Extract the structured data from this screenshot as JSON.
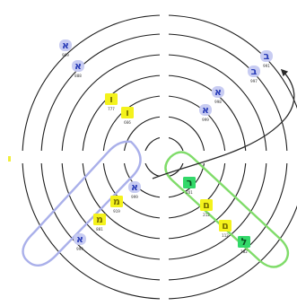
{
  "colors": {
    "ring": "#1e1e1e",
    "blue_tile": "#c8ccf2",
    "blue_letter": "#2b3eb8",
    "yellow_tile": "#f4f21c",
    "yellow_letter": "#7a7100",
    "green_tile": "#33d86a",
    "green_letter": "#0b4f22",
    "blue_band": "#aab0ea",
    "green_band": "#80dc6a",
    "path": "#2a2a2a",
    "marker": "#f1ee3a"
  },
  "nodes": [
    {
      "letter": "א",
      "number": "999",
      "color": "blue"
    },
    {
      "letter": "א",
      "number": "888",
      "color": "blue"
    },
    {
      "letter": "ו",
      "number": "777",
      "color": "yellow"
    },
    {
      "letter": "ו",
      "number": "666",
      "color": "yellow"
    },
    {
      "letter": "ב",
      "number": "991",
      "color": "blue"
    },
    {
      "letter": "ב",
      "number": "997",
      "color": "blue"
    },
    {
      "letter": "א",
      "number": "998",
      "color": "blue"
    },
    {
      "letter": "א",
      "number": "999",
      "color": "blue"
    },
    {
      "letter": "א",
      "number": "999",
      "color": "blue"
    },
    {
      "letter": "מ",
      "number": "919",
      "color": "yellow"
    },
    {
      "letter": "מ",
      "number": "881",
      "color": "yellow"
    },
    {
      "letter": "א",
      "number": "999",
      "color": "blue"
    },
    {
      "letter": "ר",
      "number": "201",
      "color": "green"
    },
    {
      "letter": "ם",
      "number": "212",
      "color": "yellow"
    },
    {
      "letter": "ם",
      "number": "112",
      "color": "yellow"
    },
    {
      "letter": "ל",
      "number": "182",
      "color": "green"
    }
  ]
}
